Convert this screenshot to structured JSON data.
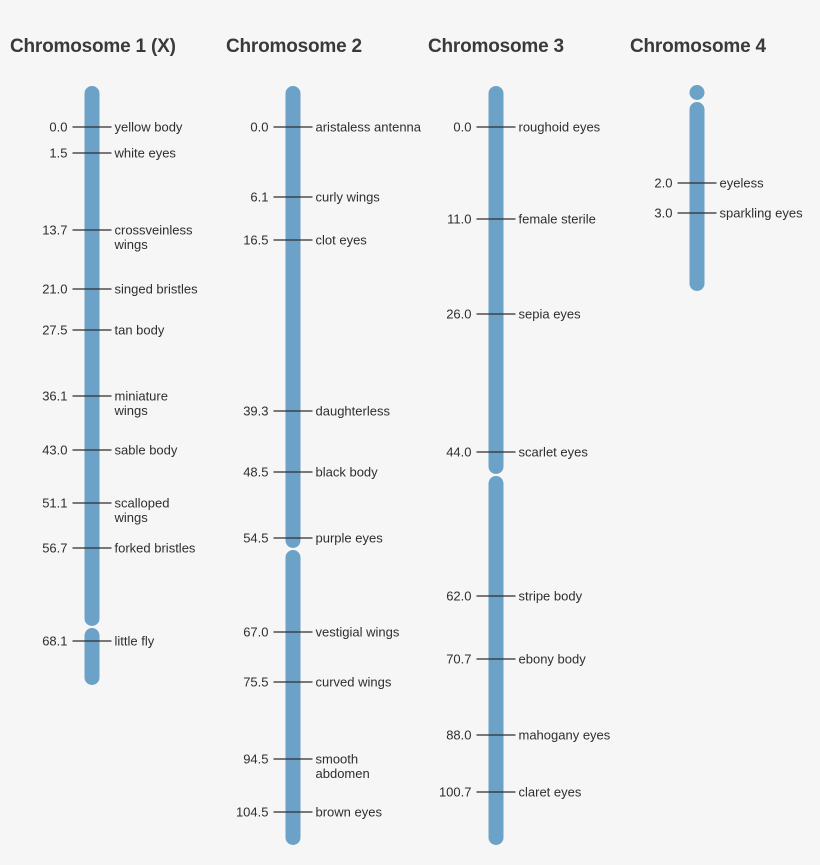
{
  "chromosomes": [
    {
      "title": "Chromosome 1 (X)",
      "color": "#6da2c8",
      "genes": [
        {
          "pos": "0.0",
          "name": [
            "yellow body"
          ]
        },
        {
          "pos": "1.5",
          "name": [
            "white eyes"
          ]
        },
        {
          "pos": "13.7",
          "name": [
            "crossveinless",
            "wings"
          ]
        },
        {
          "pos": "21.0",
          "name": [
            "singed bristles"
          ]
        },
        {
          "pos": "27.5",
          "name": [
            "tan body"
          ]
        },
        {
          "pos": "36.1",
          "name": [
            "miniature",
            "wings"
          ]
        },
        {
          "pos": "43.0",
          "name": [
            "sable body"
          ]
        },
        {
          "pos": "51.1",
          "name": [
            "scalloped",
            "wings"
          ]
        },
        {
          "pos": "56.7",
          "name": [
            "forked bristles"
          ]
        },
        {
          "pos": "68.1",
          "name": [
            "little fly"
          ]
        }
      ]
    },
    {
      "title": "Chromosome 2",
      "color": "#6da2c8",
      "genes": [
        {
          "pos": "0.0",
          "name": [
            "aristaless antenna"
          ]
        },
        {
          "pos": "6.1",
          "name": [
            "curly wings"
          ]
        },
        {
          "pos": "16.5",
          "name": [
            "clot eyes"
          ]
        },
        {
          "pos": "39.3",
          "name": [
            "daughterless"
          ]
        },
        {
          "pos": "48.5",
          "name": [
            "black body"
          ]
        },
        {
          "pos": "54.5",
          "name": [
            "purple eyes"
          ]
        },
        {
          "pos": "67.0",
          "name": [
            "vestigial wings"
          ]
        },
        {
          "pos": "75.5",
          "name": [
            "curved wings"
          ]
        },
        {
          "pos": "94.5",
          "name": [
            "smooth",
            "abdomen"
          ]
        },
        {
          "pos": "104.5",
          "name": [
            "brown eyes"
          ]
        }
      ]
    },
    {
      "title": "Chromosome 3",
      "color": "#6da2c8",
      "genes": [
        {
          "pos": "0.0",
          "name": [
            "roughoid eyes"
          ]
        },
        {
          "pos": "11.0",
          "name": [
            "female sterile"
          ]
        },
        {
          "pos": "26.0",
          "name": [
            "sepia eyes"
          ]
        },
        {
          "pos": "44.0",
          "name": [
            "scarlet eyes"
          ]
        },
        {
          "pos": "62.0",
          "name": [
            "stripe body"
          ]
        },
        {
          "pos": "70.7",
          "name": [
            "ebony body"
          ]
        },
        {
          "pos": "88.0",
          "name": [
            "mahogany eyes"
          ]
        },
        {
          "pos": "100.7",
          "name": [
            "claret eyes"
          ]
        }
      ]
    },
    {
      "title": "Chromosome 4",
      "color": "#6da2c8",
      "genes": [
        {
          "pos": "2.0",
          "name": [
            "eyeless"
          ]
        },
        {
          "pos": "3.0",
          "name": [
            "sparkling eyes"
          ]
        }
      ]
    }
  ]
}
